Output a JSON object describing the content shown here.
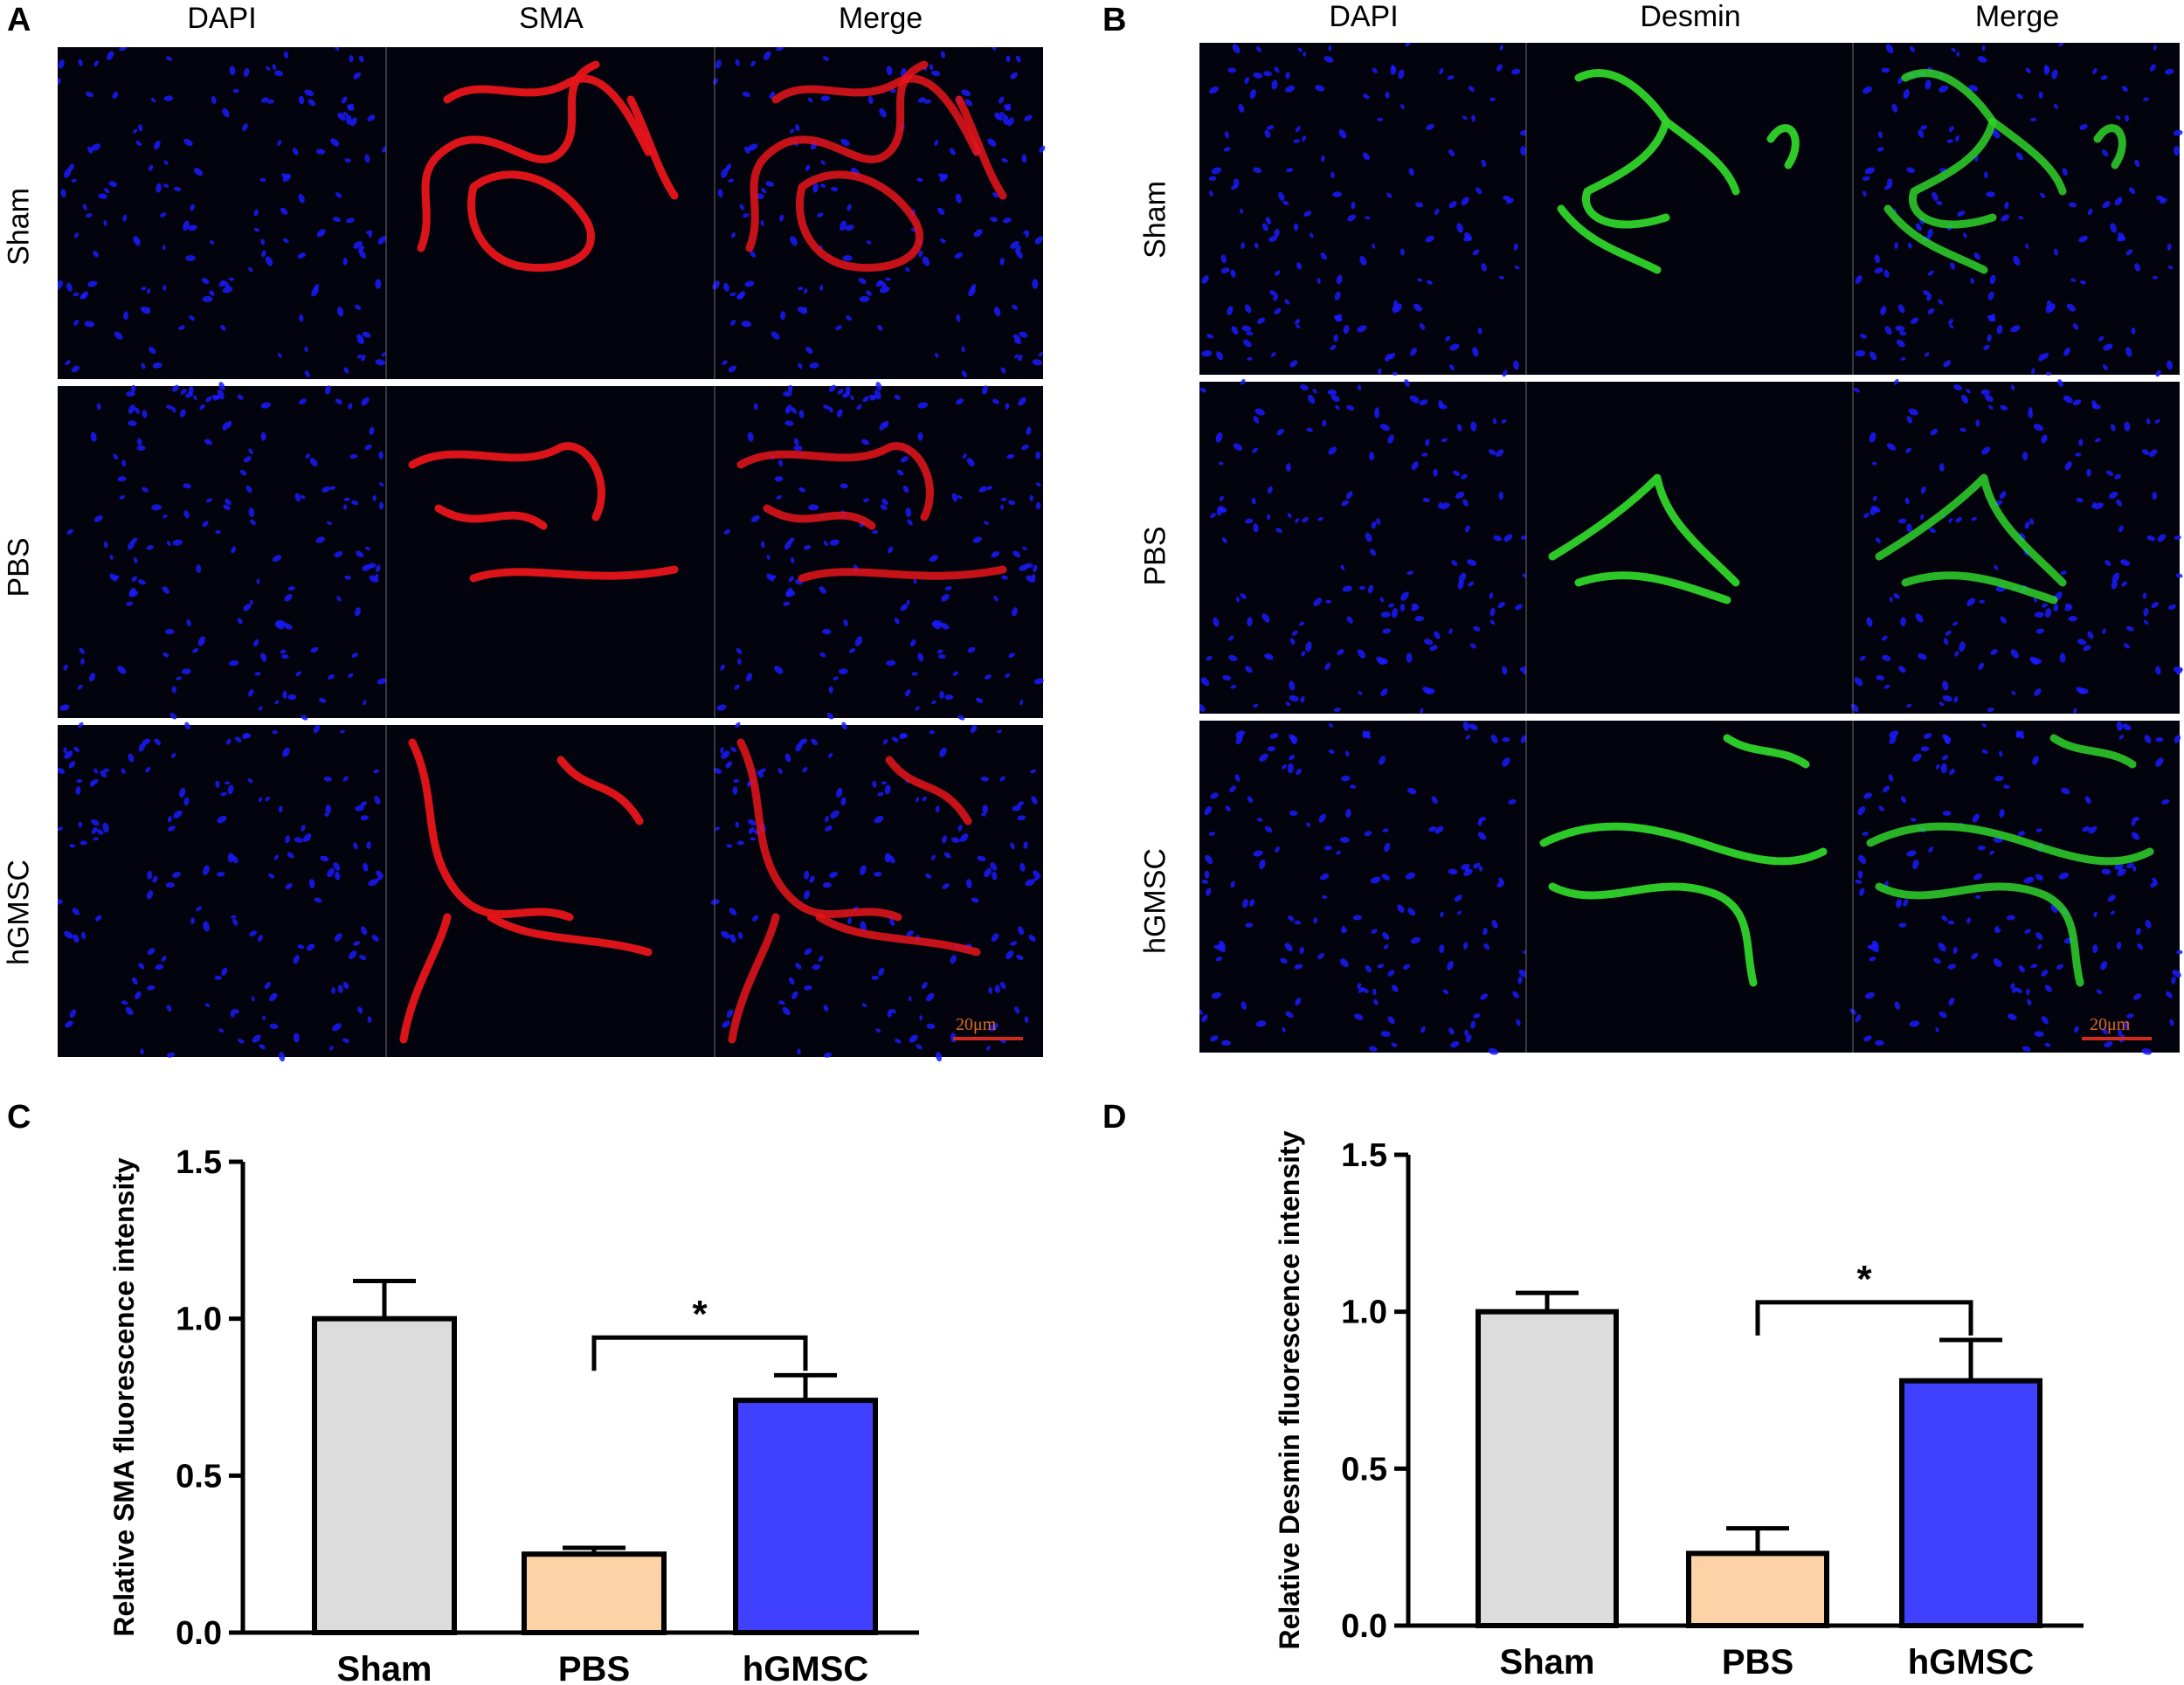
{
  "panels": {
    "A": {
      "letter": "A",
      "columns": [
        "DAPI",
        "SMA",
        "Merge"
      ],
      "rows": [
        "Sham",
        "PBS",
        "hGMSC"
      ],
      "scale_bar": "20μm",
      "stain_color": "#e8141a"
    },
    "B": {
      "letter": "B",
      "columns": [
        "DAPI",
        "Desmin",
        "Merge"
      ],
      "rows": [
        "Sham",
        "PBS",
        "hGMSC"
      ],
      "scale_bar": "20μm",
      "stain_color": "#2fd42a"
    },
    "C": {
      "letter": "C"
    },
    "D": {
      "letter": "D"
    }
  },
  "colors": {
    "dapi": "#1a1aff",
    "sham": "#dcdcdc",
    "pbs": "#fcd2a6",
    "hgmsc": "#4040ff"
  },
  "chart_data": [
    {
      "type": "bar",
      "panel": "C",
      "categories": [
        "Sham",
        "PBS",
        "hGMSC"
      ],
      "values": [
        1.0,
        0.25,
        0.74
      ],
      "errors": [
        0.12,
        0.02,
        0.08
      ],
      "ylabel": "Relative SMA fluorescence intensity",
      "xlabel": "",
      "ylim": [
        0,
        1.5
      ],
      "yticks": [
        "0.0",
        "0.5",
        "1.0",
        "1.5"
      ],
      "significance": {
        "from": "PBS",
        "to": "hGMSC",
        "label": "*"
      }
    },
    {
      "type": "bar",
      "panel": "D",
      "categories": [
        "Sham",
        "PBS",
        "hGMSC"
      ],
      "values": [
        1.0,
        0.23,
        0.78
      ],
      "errors": [
        0.06,
        0.08,
        0.13
      ],
      "ylabel": "Relative Desmin fluorescence intensity",
      "xlabel": "",
      "ylim": [
        0,
        1.5
      ],
      "yticks": [
        "0.0",
        "0.5",
        "1.0",
        "1.5"
      ],
      "significance": {
        "from": "PBS",
        "to": "hGMSC",
        "label": "*"
      }
    }
  ]
}
